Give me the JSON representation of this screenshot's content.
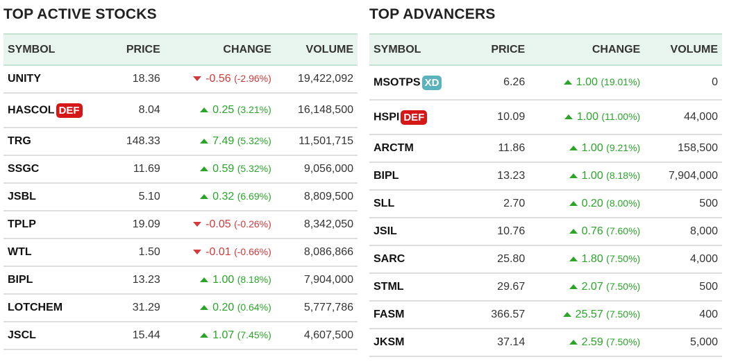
{
  "colors": {
    "up": "#2aa52a",
    "down": "#d03a3a",
    "def_badge": "#d61717",
    "xd_badge": "#5ab2bd"
  },
  "tables": [
    {
      "title": "TOP ACTIVE STOCKS",
      "headers": [
        "SYMBOL",
        "PRICE",
        "CHANGE",
        "VOLUME"
      ],
      "rows": [
        {
          "symbol": "UNITY",
          "price": "18.36",
          "dir": "down",
          "change": "-0.56",
          "pct": "(-2.96%)",
          "volume": "19,422,092"
        },
        {
          "symbol": "HASCOL",
          "badge": "DEF",
          "price": "8.04",
          "dir": "up",
          "change": "0.25",
          "pct": "(3.21%)",
          "volume": "16,148,500"
        },
        {
          "symbol": "TRG",
          "price": "148.33",
          "dir": "up",
          "change": "7.49",
          "pct": "(5.32%)",
          "volume": "11,501,715"
        },
        {
          "symbol": "SSGC",
          "price": "11.69",
          "dir": "up",
          "change": "0.59",
          "pct": "(5.32%)",
          "volume": "9,056,000"
        },
        {
          "symbol": "JSBL",
          "price": "5.10",
          "dir": "up",
          "change": "0.32",
          "pct": "(6.69%)",
          "volume": "8,809,500"
        },
        {
          "symbol": "TPLP",
          "price": "19.09",
          "dir": "down",
          "change": "-0.05",
          "pct": "(-0.26%)",
          "volume": "8,342,050"
        },
        {
          "symbol": "WTL",
          "price": "1.50",
          "dir": "down",
          "change": "-0.01",
          "pct": "(-0.66%)",
          "volume": "8,086,866"
        },
        {
          "symbol": "BIPL",
          "price": "13.23",
          "dir": "up",
          "change": "1.00",
          "pct": "(8.18%)",
          "volume": "7,904,000"
        },
        {
          "symbol": "LOTCHEM",
          "price": "31.29",
          "dir": "up",
          "change": "0.20",
          "pct": "(0.64%)",
          "volume": "5,777,786"
        },
        {
          "symbol": "JSCL",
          "price": "15.44",
          "dir": "up",
          "change": "1.07",
          "pct": "(7.45%)",
          "volume": "4,607,500"
        }
      ]
    },
    {
      "title": "TOP ADVANCERS",
      "headers": [
        "SYMBOL",
        "PRICE",
        "CHANGE",
        "VOLUME"
      ],
      "rows": [
        {
          "symbol": "MSOTPS",
          "badge": "XD",
          "price": "6.26",
          "dir": "up",
          "change": "1.00",
          "pct": "(19.01%)",
          "volume": "0"
        },
        {
          "symbol": "HSPI",
          "badge": "DEF",
          "price": "10.09",
          "dir": "up",
          "change": "1.00",
          "pct": "(11.00%)",
          "volume": "44,000"
        },
        {
          "symbol": "ARCTM",
          "price": "11.86",
          "dir": "up",
          "change": "1.00",
          "pct": "(9.21%)",
          "volume": "158,500"
        },
        {
          "symbol": "BIPL",
          "price": "13.23",
          "dir": "up",
          "change": "1.00",
          "pct": "(8.18%)",
          "volume": "7,904,000"
        },
        {
          "symbol": "SLL",
          "price": "2.70",
          "dir": "up",
          "change": "0.20",
          "pct": "(8.00%)",
          "volume": "500"
        },
        {
          "symbol": "JSIL",
          "price": "10.76",
          "dir": "up",
          "change": "0.76",
          "pct": "(7.60%)",
          "volume": "8,000"
        },
        {
          "symbol": "SARC",
          "price": "25.80",
          "dir": "up",
          "change": "1.80",
          "pct": "(7.50%)",
          "volume": "4,000"
        },
        {
          "symbol": "STML",
          "price": "29.67",
          "dir": "up",
          "change": "2.07",
          "pct": "(7.50%)",
          "volume": "500"
        },
        {
          "symbol": "FASM",
          "price": "366.57",
          "dir": "up",
          "change": "25.57",
          "pct": "(7.50%)",
          "volume": "400"
        },
        {
          "symbol": "JKSM",
          "price": "37.14",
          "dir": "up",
          "change": "2.59",
          "pct": "(7.50%)",
          "volume": "5,000"
        }
      ]
    }
  ]
}
